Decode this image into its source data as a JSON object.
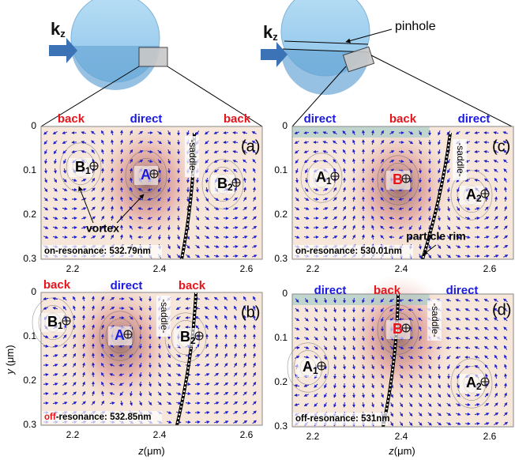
{
  "schematic": {
    "left": {
      "wavevector": {
        "symbol": "k",
        "sub": "z"
      }
    },
    "right": {
      "wavevector": {
        "symbol": "k",
        "sub": "z"
      },
      "pinhole": "pinhole"
    }
  },
  "axes": {
    "y_label": {
      "symbol": "y",
      "unit": " (μm)"
    },
    "x_label": {
      "symbol": "z",
      "unit": "(μm)"
    }
  },
  "panels": [
    {
      "label": "(a)",
      "y_ticks": [
        "0",
        "0.1",
        "0.2",
        "0.3"
      ],
      "x_ticks": [
        "2.2",
        "2.4",
        "2.6"
      ],
      "flow_labels": [
        {
          "text": "back",
          "color": "#e8141b"
        },
        {
          "text": "direct",
          "color": "#1a1ae0"
        },
        {
          "text": "back",
          "color": "#e8141b"
        }
      ],
      "points": [
        {
          "name": "B",
          "sub": "1",
          "color": "#000000"
        },
        {
          "name": "A",
          "sub": "",
          "color": "#1a1ae0"
        },
        {
          "name": "B",
          "sub": "2",
          "color": "#000000"
        }
      ],
      "saddle": "-saddle-",
      "annotation": "vortex",
      "resonance": {
        "highlight": "",
        "text": "on-resonance: 532.79nm"
      }
    },
    {
      "label": "(c)",
      "y_ticks": [
        "0",
        "0.1",
        "0.2",
        "0.3"
      ],
      "x_ticks": [
        "2.2",
        "2.4",
        "2.6"
      ],
      "flow_labels": [
        {
          "text": "direct",
          "color": "#1a1ae0"
        },
        {
          "text": "back",
          "color": "#e8141b"
        },
        {
          "text": "direct",
          "color": "#1a1ae0"
        }
      ],
      "points": [
        {
          "name": "A",
          "sub": "1",
          "color": "#000000"
        },
        {
          "name": "B",
          "sub": "",
          "color": "#e8141b"
        },
        {
          "name": "A",
          "sub": "2",
          "color": "#000000"
        }
      ],
      "saddle": "-saddle-",
      "annotation": "particle rim",
      "resonance": {
        "highlight": "",
        "text": "on-resonance: 530.01nm"
      }
    },
    {
      "label": "(b)",
      "y_ticks": [
        "0",
        "0.1",
        "0.2",
        "0.3"
      ],
      "x_ticks": [
        "2.2",
        "2.4",
        "2.6"
      ],
      "flow_labels": [
        {
          "text": "back",
          "color": "#e8141b"
        },
        {
          "text": "direct",
          "color": "#1a1ae0"
        },
        {
          "text": "back",
          "color": "#e8141b"
        }
      ],
      "points": [
        {
          "name": "B",
          "sub": "1",
          "color": "#000000"
        },
        {
          "name": "A",
          "sub": "",
          "color": "#1a1ae0"
        },
        {
          "name": "B",
          "sub": "2",
          "color": "#000000"
        }
      ],
      "saddle": "-saddle-",
      "annotation": "",
      "resonance": {
        "highlight": "off",
        "text": "-resonance: 532.85nm"
      }
    },
    {
      "label": "(d)",
      "y_ticks": [
        "0",
        "0.1",
        "0.2",
        "0.3"
      ],
      "x_ticks": [
        "2.2",
        "2.4",
        "2.6"
      ],
      "flow_labels": [
        {
          "text": "direct",
          "color": "#1a1ae0"
        },
        {
          "text": "back",
          "color": "#e8141b"
        },
        {
          "text": "direct",
          "color": "#1a1ae0"
        }
      ],
      "points": [
        {
          "name": "B",
          "sub": "",
          "color": "#e8141b"
        },
        {
          "name": "A",
          "sub": "1",
          "color": "#000000"
        },
        {
          "name": "A",
          "sub": "2",
          "color": "#000000"
        }
      ],
      "saddle": "-saddle-",
      "annotation": "",
      "resonance": {
        "highlight": "",
        "text": "off-resonance: 531nm"
      }
    }
  ]
}
